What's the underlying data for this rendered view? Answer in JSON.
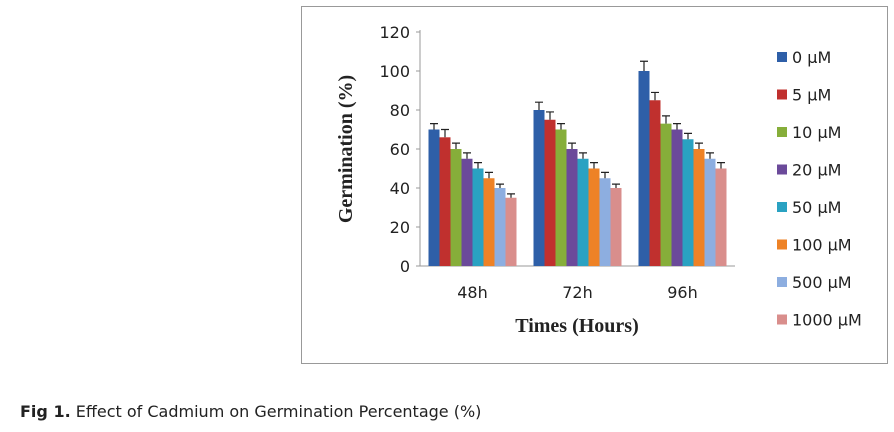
{
  "caption": {
    "label": "Fig 1.",
    "text": " Effect of Cadmium on Germination Percentage (%)"
  },
  "chart_data": {
    "type": "bar",
    "title": "",
    "xlabel": "Times (Hours)",
    "ylabel": "Germination (%)",
    "ylim": [
      0,
      120
    ],
    "yticks": [
      0,
      20,
      40,
      60,
      80,
      100,
      120
    ],
    "categories": [
      "48h",
      "72h",
      "96h"
    ],
    "legend_position": "right",
    "error_bars": true,
    "series": [
      {
        "name": "0 µM",
        "color": "#2e5fa8",
        "values": [
          70,
          80,
          100
        ],
        "errors": [
          3,
          4,
          5
        ]
      },
      {
        "name": "5 µM",
        "color": "#c0302e",
        "values": [
          66,
          75,
          85
        ],
        "errors": [
          4,
          4,
          4
        ]
      },
      {
        "name": "10 µM",
        "color": "#86ae3a",
        "values": [
          60,
          70,
          73
        ],
        "errors": [
          3,
          3,
          4
        ]
      },
      {
        "name": "20 µM",
        "color": "#6b4a9a",
        "values": [
          55,
          60,
          70
        ],
        "errors": [
          3,
          3,
          3
        ]
      },
      {
        "name": "50 µM",
        "color": "#2aa2c2",
        "values": [
          50,
          55,
          65
        ],
        "errors": [
          3,
          3,
          3
        ]
      },
      {
        "name": "100 µM",
        "color": "#ee8226",
        "values": [
          45,
          50,
          60
        ],
        "errors": [
          3,
          3,
          3
        ]
      },
      {
        "name": "500 µM",
        "color": "#8daee0",
        "values": [
          40,
          45,
          55
        ],
        "errors": [
          2,
          3,
          3
        ]
      },
      {
        "name": "1000 µM",
        "color": "#d98e8c",
        "values": [
          35,
          40,
          50
        ],
        "errors": [
          2,
          2,
          3
        ]
      }
    ]
  }
}
